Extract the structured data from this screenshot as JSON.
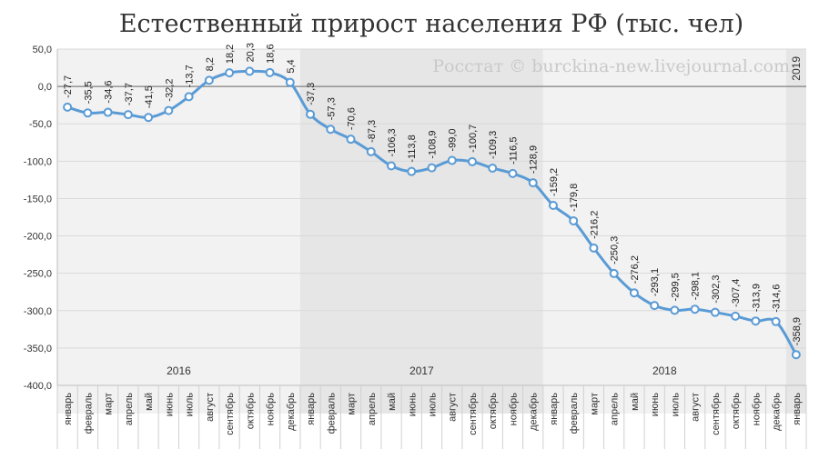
{
  "chart_data": {
    "type": "line",
    "title": "Естественный прирост населения РФ (тыс. чел)",
    "watermark": "Росстат © burckina-new.livejournal.com",
    "xlabel": "",
    "ylabel": "",
    "ylim": [
      -400,
      50
    ],
    "y_ticks": [
      "50,0",
      "0,0",
      "-50,0",
      "-100,0",
      "-150,0",
      "-200,0",
      "-250,0",
      "-300,0",
      "-350,0",
      "-400,0"
    ],
    "categories": [
      "январь",
      "февраль",
      "март",
      "апрель",
      "май",
      "июнь",
      "июль",
      "август",
      "сентябрь",
      "октябрь",
      "ноябрь",
      "декабрь",
      "январь",
      "февраль",
      "март",
      "апрель",
      "май",
      "июнь",
      "июль",
      "август",
      "сентябрь",
      "октябрь",
      "ноябрь",
      "декабрь",
      "январь",
      "февраль",
      "март",
      "апрель",
      "май",
      "июнь",
      "июль",
      "август",
      "сентябрь",
      "октябрь",
      "ноябрь",
      "декабрь",
      "январь"
    ],
    "values": [
      -27.7,
      -35.5,
      -34.6,
      -37.7,
      -41.5,
      -32.2,
      -13.7,
      8.2,
      18.2,
      20.3,
      18.6,
      5.4,
      -37.3,
      -57.3,
      -70.6,
      -87.3,
      -106.3,
      -113.8,
      -108.9,
      -99.0,
      -100.7,
      -109.3,
      -116.5,
      -128.9,
      -159.2,
      -179.8,
      -216.2,
      -250.3,
      -276.2,
      -293.1,
      -299.5,
      -298.1,
      -302.3,
      -307.4,
      -313.9,
      -314.6,
      -358.9
    ],
    "value_labels": [
      "-27,7",
      "-35,5",
      "-34,6",
      "-37,7",
      "-41,5",
      "-32,2",
      "-13,7",
      "8,2",
      "18,2",
      "20,3",
      "18,6",
      "5,4",
      "-37,3",
      "-57,3",
      "-70,6",
      "-87,3",
      "-106,3",
      "-113,8",
      "-108,9",
      "-99,0",
      "-100,7",
      "-109,3",
      "-116,5",
      "-128,9",
      "-159,2",
      "-179,8",
      "-216,2",
      "-250,3",
      "-276,2",
      "-293,1",
      "-299,5",
      "-298,1",
      "-302,3",
      "-307,4",
      "-313,9",
      "-314,6",
      "-358,9"
    ],
    "years": [
      {
        "label": "2016",
        "start": 0,
        "count": 12
      },
      {
        "label": "2017",
        "start": 12,
        "count": 12
      },
      {
        "label": "2018",
        "start": 24,
        "count": 12
      },
      {
        "label": "2019",
        "start": 36,
        "count": 1
      }
    ],
    "grid": true,
    "legend": "none",
    "colors": {
      "line": "#5b9bd5",
      "marker_fill": "#ffffff",
      "band_light": "#f2f2f2",
      "band_dark": "#e6e6e6",
      "grid": "#d9d9d9",
      "zero_line": "#808080"
    }
  }
}
